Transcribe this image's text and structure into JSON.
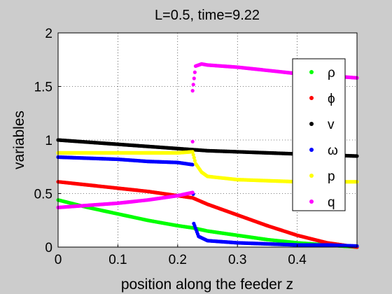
{
  "chart_data": {
    "type": "scatter",
    "title": "L=0.5, time=9.22",
    "xlabel": "position along the feeder z",
    "ylabel": "variables",
    "xlim": [
      0,
      0.5
    ],
    "ylim": [
      0,
      2
    ],
    "xticks": [
      "0",
      "0.1",
      "0.2",
      "0.3",
      "0.4"
    ],
    "xtick_values": [
      0,
      0.1,
      0.2,
      0.3,
      0.4
    ],
    "yticks": [
      "0",
      "0.5",
      "1",
      "1.5",
      "2"
    ],
    "ytick_values": [
      0,
      0.5,
      1,
      1.5,
      2
    ],
    "grid": true,
    "legend_position": "right",
    "series": [
      {
        "name": "ρ",
        "color": "#00ff00",
        "x": [
          0,
          0.05,
          0.1,
          0.15,
          0.2,
          0.225,
          0.25,
          0.3,
          0.35,
          0.4,
          0.45,
          0.5
        ],
        "y": [
          0.44,
          0.37,
          0.31,
          0.25,
          0.2,
          0.18,
          0.15,
          0.11,
          0.07,
          0.04,
          0.02,
          0.0
        ]
      },
      {
        "name": "ϕ",
        "color": "#ff0000",
        "x": [
          0,
          0.05,
          0.1,
          0.15,
          0.2,
          0.225,
          0.25,
          0.3,
          0.35,
          0.4,
          0.45,
          0.5
        ],
        "y": [
          0.61,
          0.58,
          0.55,
          0.52,
          0.48,
          0.46,
          0.4,
          0.3,
          0.2,
          0.11,
          0.04,
          0.0
        ]
      },
      {
        "name": "v",
        "color": "#000000",
        "x": [
          0,
          0.05,
          0.1,
          0.15,
          0.2,
          0.225,
          0.25,
          0.3,
          0.35,
          0.4,
          0.45,
          0.5
        ],
        "y": [
          1.0,
          0.98,
          0.96,
          0.94,
          0.92,
          0.91,
          0.9,
          0.89,
          0.88,
          0.87,
          0.86,
          0.85
        ]
      },
      {
        "name": "ω",
        "color": "#0000ff",
        "x": [
          0,
          0.05,
          0.1,
          0.15,
          0.2,
          0.225,
          0.227,
          0.235,
          0.25,
          0.3,
          0.35,
          0.4,
          0.45,
          0.5
        ],
        "y": [
          0.84,
          0.83,
          0.82,
          0.8,
          0.79,
          0.77,
          0.22,
          0.1,
          0.06,
          0.04,
          0.03,
          0.02,
          0.02,
          0.01
        ]
      },
      {
        "name": "p",
        "color": "#ffff00",
        "x": [
          0,
          0.05,
          0.1,
          0.15,
          0.2,
          0.225,
          0.23,
          0.24,
          0.25,
          0.3,
          0.35,
          0.4,
          0.45,
          0.5
        ],
        "y": [
          0.88,
          0.88,
          0.88,
          0.88,
          0.88,
          0.89,
          0.78,
          0.7,
          0.66,
          0.63,
          0.62,
          0.61,
          0.61,
          0.61
        ]
      },
      {
        "name": "q",
        "color": "#ff00ff",
        "x": [
          0,
          0.05,
          0.1,
          0.15,
          0.2,
          0.225,
          0.225,
          0.23,
          0.24,
          0.25,
          0.3,
          0.35,
          0.4,
          0.45,
          0.5
        ],
        "y": [
          0.37,
          0.39,
          0.41,
          0.44,
          0.48,
          0.51,
          1.46,
          1.69,
          1.71,
          1.7,
          1.68,
          1.65,
          1.62,
          1.6,
          1.58
        ]
      }
    ]
  }
}
